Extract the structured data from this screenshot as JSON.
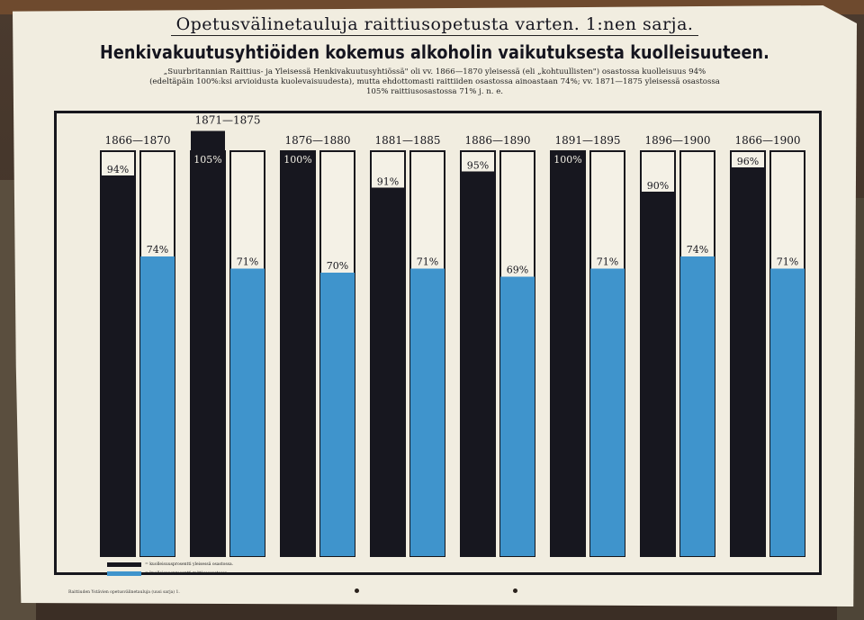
{
  "poster": {
    "top_title": "Opetusvälinetauluja raittiusopetusta varten. 1:nen sarja.",
    "main_title": "Henkivakuutusyhtiöiden kokemus alkoholin vaikutuksesta kuolleisuuteen.",
    "description_line1": "„Suurbritannian Raittius- ja Yleisessä Henkivakuutusyhtiössä\" oli vv. 1866—1870 yleisessä (eli „kohtuullisten\") osastossa kuolleisuus 94%",
    "description_line2": "(edeltäpäin 100%:ksi arvioidusta kuolevaisuudesta), mutta ehdottomasti raittiiden osastossa ainoastaan 74%; vv. 1871—1875 yleisessä osastossa",
    "description_line3": "105% raittiusosastossa 71% j. n. e.",
    "footer": "Raittiuden Ystävien opetusvälinetauluja (uusi sarja) 1."
  },
  "legend": {
    "general_label": "= kuolleisuusprosentti yleisessä osastossa.",
    "abstainer_label": "= kuolleisuusprosentti raittiusosastossa."
  },
  "colors": {
    "general": "#17171f",
    "abstainer": "#3f94cc",
    "paper": "#f4f1e6",
    "outline": "#17171d"
  },
  "chart_data": {
    "type": "bar",
    "categories": [
      "1866—1870",
      "1871—1875",
      "1876—1880",
      "1881—1885",
      "1886—1890",
      "1891—1895",
      "1896—1900",
      "1866—1900"
    ],
    "series": [
      {
        "name": "kuolleisuusprosentti yleisessä osastossa",
        "values": [
          94,
          105,
          100,
          91,
          95,
          100,
          90,
          96
        ],
        "labels": [
          "94%",
          "105%",
          "100%",
          "91%",
          "95%",
          "100%",
          "90%",
          "96%"
        ]
      },
      {
        "name": "kuolleisuusprosentti raittiusosastossa",
        "values": [
          74,
          71,
          70,
          71,
          69,
          71,
          74,
          71
        ],
        "labels": [
          "74%",
          "71%",
          "70%",
          "71%",
          "69%",
          "71%",
          "74%",
          "71%"
        ]
      }
    ],
    "ylim": [
      0,
      100
    ],
    "grid": false,
    "legend_position": "bottom-left"
  }
}
